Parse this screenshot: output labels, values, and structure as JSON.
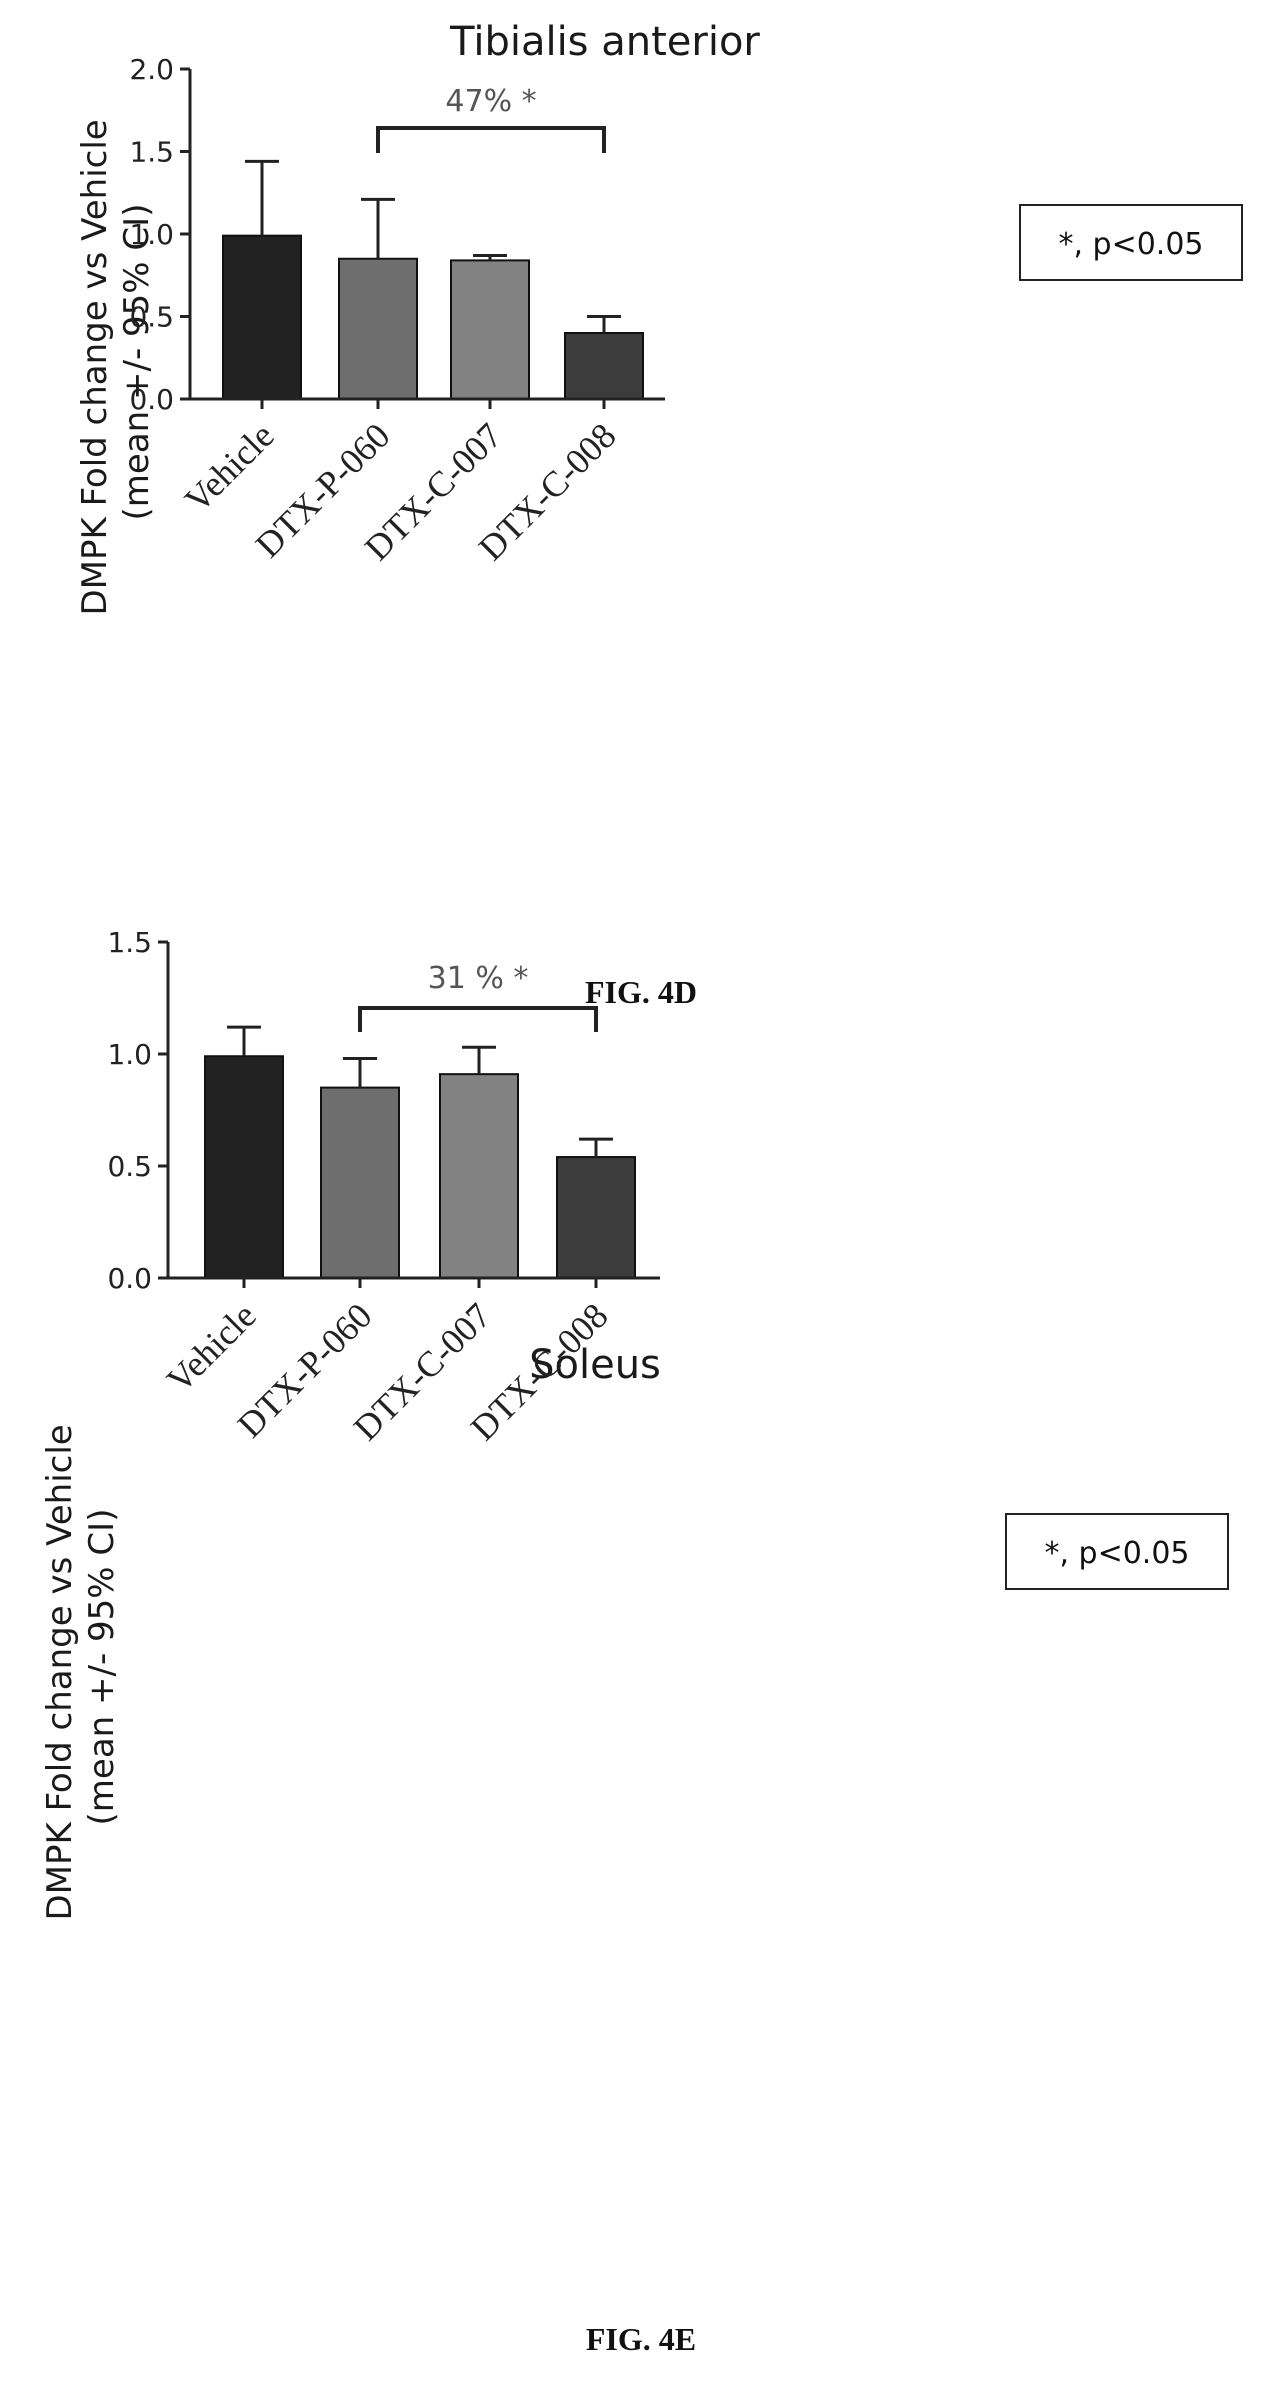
{
  "chart_data": [
    {
      "type": "bar",
      "title": "Tibialis anterior",
      "ylabel": "DMPK Fold change vs Vehicle\n(mean +/- 95% CI)",
      "xlabel": "",
      "categories": [
        "Vehicle",
        "DTX-P-060",
        "DTX-C-007",
        "DTX-C-008"
      ],
      "values": [
        0.99,
        0.85,
        0.84,
        0.4
      ],
      "error_upper": [
        1.44,
        1.21,
        0.87,
        0.5
      ],
      "ylim": [
        0,
        2.0
      ],
      "yticks": [
        "0.0",
        "0.5",
        "1.0",
        "1.5",
        "2.0"
      ],
      "bar_colors": [
        "#222222",
        "#6e6e6e",
        "#828282",
        "#3c3c3c"
      ],
      "annotation": {
        "text": "47% *",
        "from": 1,
        "to": 3
      },
      "legend": "*, p<0.05",
      "grid": false,
      "caption": "FIG. 4D"
    },
    {
      "type": "bar",
      "title": "Soleus",
      "ylabel": "DMPK Fold change vs Vehicle\n(mean +/- 95% CI)",
      "xlabel": "",
      "categories": [
        "Vehicle",
        "DTX-P-060",
        "DTX-C-007",
        "DTX-C-008"
      ],
      "values": [
        0.99,
        0.85,
        0.91,
        0.54
      ],
      "error_upper": [
        1.12,
        0.98,
        1.03,
        0.62
      ],
      "ylim": [
        0,
        1.5
      ],
      "yticks": [
        "0.0",
        "0.5",
        "1.0",
        "1.5"
      ],
      "bar_colors": [
        "#222222",
        "#6e6e6e",
        "#828282",
        "#3c3c3c"
      ],
      "annotation": {
        "text": "31 % *",
        "from": 1,
        "to": 3
      },
      "legend": "*, p<0.05",
      "grid": false,
      "caption": "FIG. 4E"
    }
  ]
}
